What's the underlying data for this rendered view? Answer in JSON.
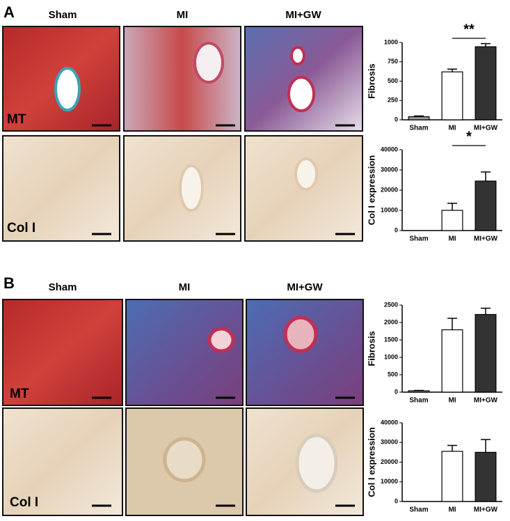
{
  "panels": [
    {
      "label": "A",
      "columns": [
        "Sham",
        "MI",
        "MI+GW"
      ],
      "rows": [
        "MT",
        "Col I"
      ]
    },
    {
      "label": "B",
      "columns": [
        "Sham",
        "MI",
        "MI+GW"
      ],
      "rows": [
        "MT",
        "Col I"
      ]
    }
  ],
  "chart_data": [
    {
      "type": "bar",
      "y_label": "Fibrosis",
      "categories": [
        "Sham",
        "MI",
        "MI+GW"
      ],
      "values": [
        40,
        620,
        945
      ],
      "error": [
        10,
        35,
        40
      ],
      "colors": [
        "#9a9a9a",
        "#ffffff",
        "#333333"
      ],
      "ylim": [
        0,
        1000
      ],
      "yticks": [
        0,
        250,
        500,
        750,
        1000
      ],
      "annotation": "**"
    },
    {
      "type": "bar",
      "y_label": "Col I expression",
      "categories": [
        "Sham",
        "MI",
        "MI+GW"
      ],
      "values": [
        0,
        10000,
        24500
      ],
      "error": [
        null,
        3500,
        4500
      ],
      "colors": [
        "#9a9a9a",
        "#ffffff",
        "#333333"
      ],
      "ylim": [
        0,
        40000
      ],
      "yticks": [
        0,
        10000,
        20000,
        30000,
        40000
      ],
      "annotation": "*"
    },
    {
      "type": "bar",
      "y_label": "Fibrosis",
      "categories": [
        "Sham",
        "MI",
        "MI+GW"
      ],
      "values": [
        40,
        1790,
        2230
      ],
      "error": [
        10,
        330,
        180
      ],
      "colors": [
        "#9a9a9a",
        "#ffffff",
        "#333333"
      ],
      "ylim": [
        0,
        2500
      ],
      "yticks": [
        0,
        500,
        1000,
        1500,
        2000,
        2500
      ]
    },
    {
      "type": "bar",
      "y_label": "Col I expression",
      "categories": [
        "Sham",
        "MI",
        "MI+GW"
      ],
      "values": [
        0,
        25500,
        25000
      ],
      "error": [
        null,
        3000,
        6500
      ],
      "colors": [
        "#9a9a9a",
        "#ffffff",
        "#333333"
      ],
      "ylim": [
        0,
        40000
      ],
      "yticks": [
        0,
        10000,
        20000,
        30000,
        40000
      ]
    }
  ]
}
